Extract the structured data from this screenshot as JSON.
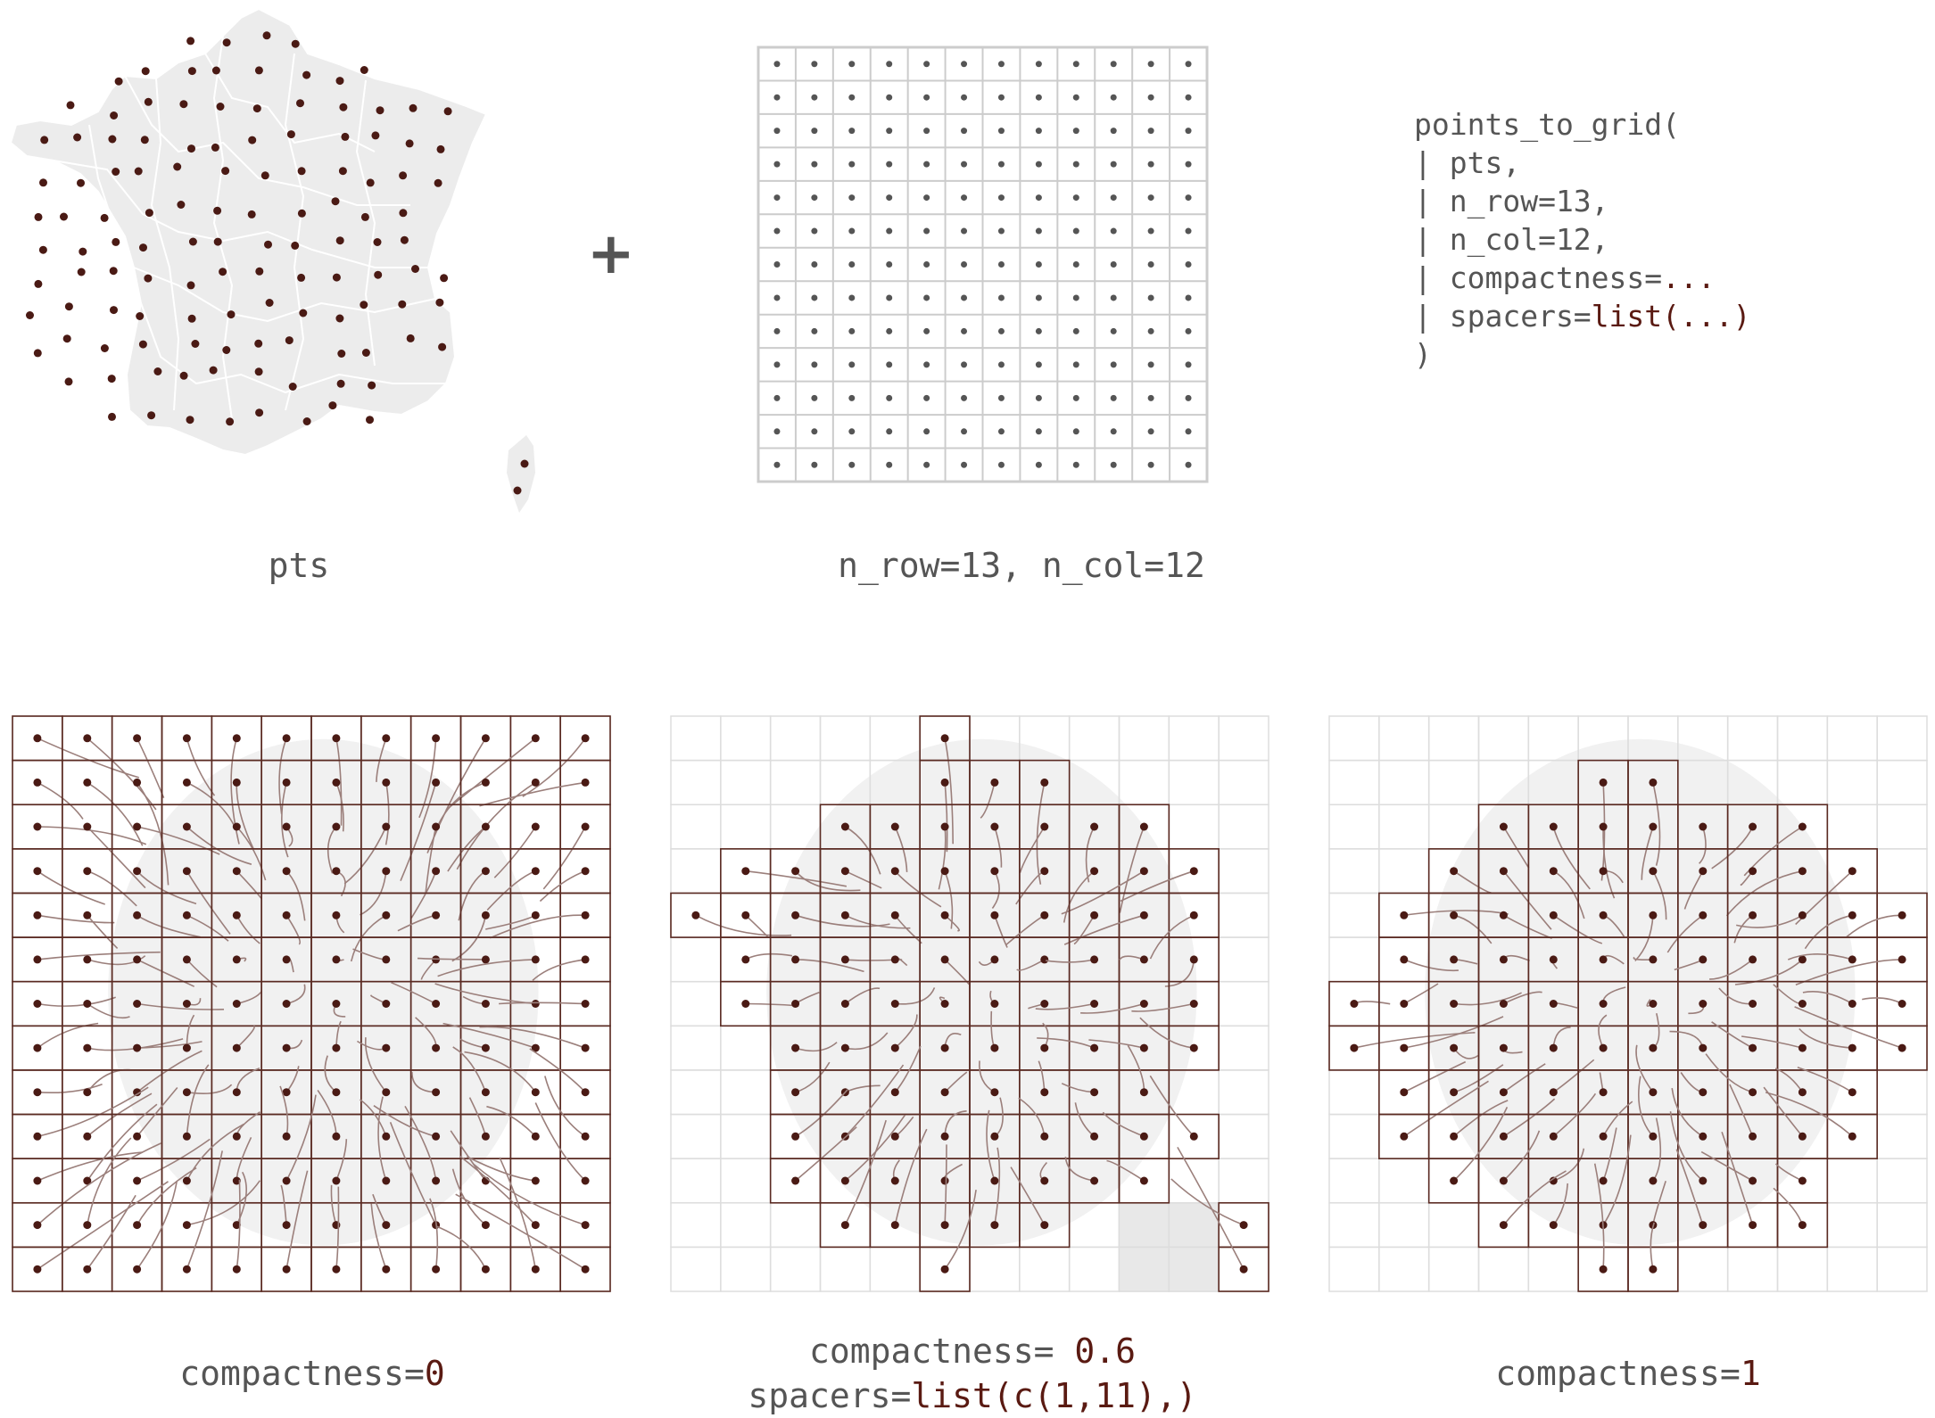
{
  "top": {
    "operator": "+",
    "map_caption": "pts",
    "grid_caption": "n_row=13, n_col=12",
    "grid_rows": 13,
    "grid_cols": 12,
    "code": {
      "l1": "points_to_grid(",
      "l2": "| pts,",
      "l3": "| n_row=13,",
      "l4": "| n_col=12,",
      "l5a": "| compactness=",
      "l5b": "...",
      "l6a": "| spacers=",
      "l6b": "list(...)",
      "l7": ")"
    }
  },
  "bottom": {
    "panel1": {
      "c_key": "compactness=",
      "c_val": "0"
    },
    "panel2": {
      "c_key": "compactness= ",
      "c_val": "0.6",
      "s_key": "spacers=",
      "s_val": "list(c(1,11),)"
    },
    "panel3": {
      "c_key": "compactness=",
      "c_val": "1"
    }
  },
  "colors": {
    "point": "#4a1a14",
    "grid_cell": "#5a2a22",
    "grid_light": "#cccccc",
    "map_fill": "#ececec",
    "line": "#9b7f7b"
  }
}
